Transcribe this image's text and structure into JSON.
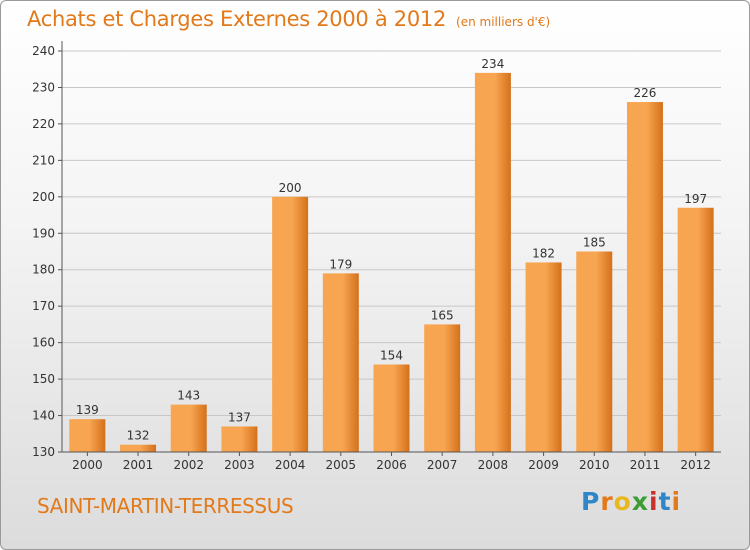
{
  "header": {
    "title": "Achats et Charges Externes 2000 à 2012",
    "unit": "(en milliers d'€)"
  },
  "footer": {
    "commune": "SAINT-MARTIN-TERRESSUS",
    "logo": {
      "text": "Proxiti",
      "letters": [
        {
          "ch": "P",
          "color": "#2f86c9"
        },
        {
          "ch": "r",
          "color": "#e2791a"
        },
        {
          "ch": "o",
          "color": "#e8b81c"
        },
        {
          "ch": "x",
          "color": "#3f9c35"
        },
        {
          "ch": "i",
          "color": "#c9302c"
        },
        {
          "ch": "t",
          "color": "#2f86c9"
        },
        {
          "ch": "i",
          "color": "#e2791a"
        }
      ]
    }
  },
  "colors": {
    "accent": "#e2791a",
    "bar_light": "#f8a552",
    "bar_dark": "#d4711a",
    "axis": "#555555",
    "grid": "#c8c8c8"
  },
  "chart_data": {
    "type": "bar",
    "title": "Achats et Charges Externes 2000 à 2012",
    "subtitle": "(en milliers d'€)",
    "xlabel": "",
    "ylabel": "",
    "categories": [
      "2000",
      "2001",
      "2002",
      "2003",
      "2004",
      "2005",
      "2006",
      "2007",
      "2008",
      "2009",
      "2010",
      "2011",
      "2012"
    ],
    "values": [
      139,
      132,
      143,
      137,
      200,
      179,
      154,
      165,
      234,
      182,
      185,
      226,
      197
    ],
    "ylim": [
      130,
      240
    ],
    "yticks": [
      130,
      140,
      150,
      160,
      170,
      180,
      190,
      200,
      210,
      220,
      230,
      240
    ],
    "grid": true,
    "data_labels": true
  }
}
